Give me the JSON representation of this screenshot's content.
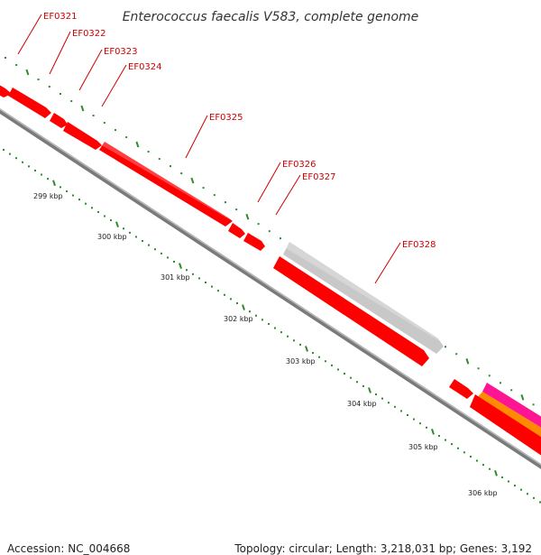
{
  "title": "Enterococcus faecalis V583, complete genome",
  "colors": {
    "gene_red": "#ff0000",
    "gene_gray": "#c8c8c8",
    "gene_orange": "#ff8c00",
    "gene_magenta": "#ff1493",
    "backbone": "#808080",
    "tick_green": "#2e8b2e",
    "label_red": "#cc0000"
  },
  "gene_labels": [
    "EF0321",
    "EF0322",
    "EF0323",
    "EF0324",
    "EF0325",
    "EF0326",
    "EF0327",
    "EF0328"
  ],
  "kbp_labels": [
    "299 kbp",
    "300 kbp",
    "301 kbp",
    "302 kbp",
    "303 kbp",
    "304 kbp",
    "305 kbp",
    "306 kbp"
  ],
  "footer": {
    "accession": "Accession: NC_004668",
    "stats": "Topology: circular; Length: 3,218,031 bp; Genes: 3,192"
  }
}
